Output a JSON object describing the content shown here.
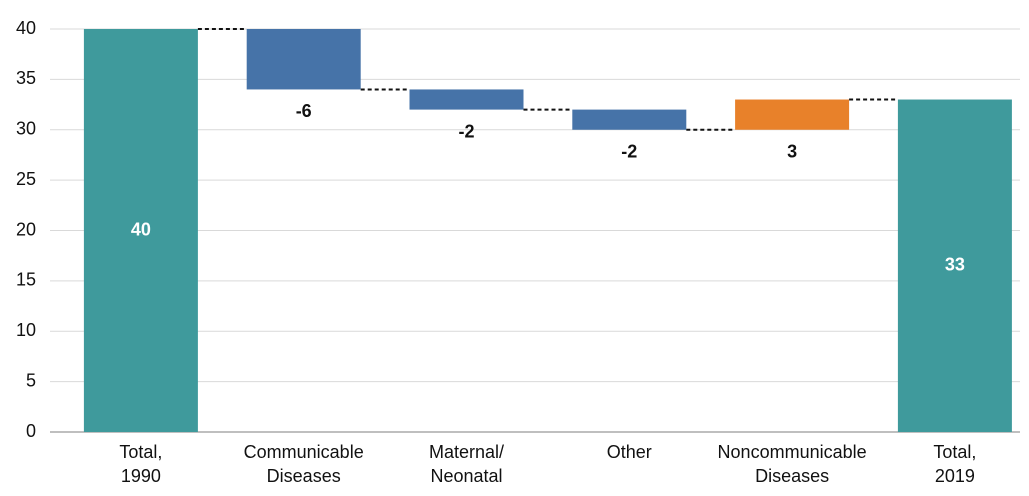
{
  "chart_data": {
    "type": "waterfall",
    "categories": [
      "Total,\n1990",
      "Communicable\nDiseases",
      "Maternal/\nNeonatal",
      "Other",
      "Noncommunicable\nDiseases",
      "Total,\n2019"
    ],
    "values": [
      40,
      -6,
      -2,
      -2,
      3,
      33
    ],
    "kinds": [
      "total",
      "delta",
      "delta",
      "delta",
      "delta",
      "total"
    ],
    "colors": {
      "total": "#3f9a9c",
      "decrease": "#4673a8",
      "increase": "#e8812a"
    },
    "ylim": [
      0,
      40
    ],
    "yticks": [
      0,
      5,
      10,
      15,
      20,
      25,
      30,
      35,
      40
    ],
    "grid": true
  }
}
